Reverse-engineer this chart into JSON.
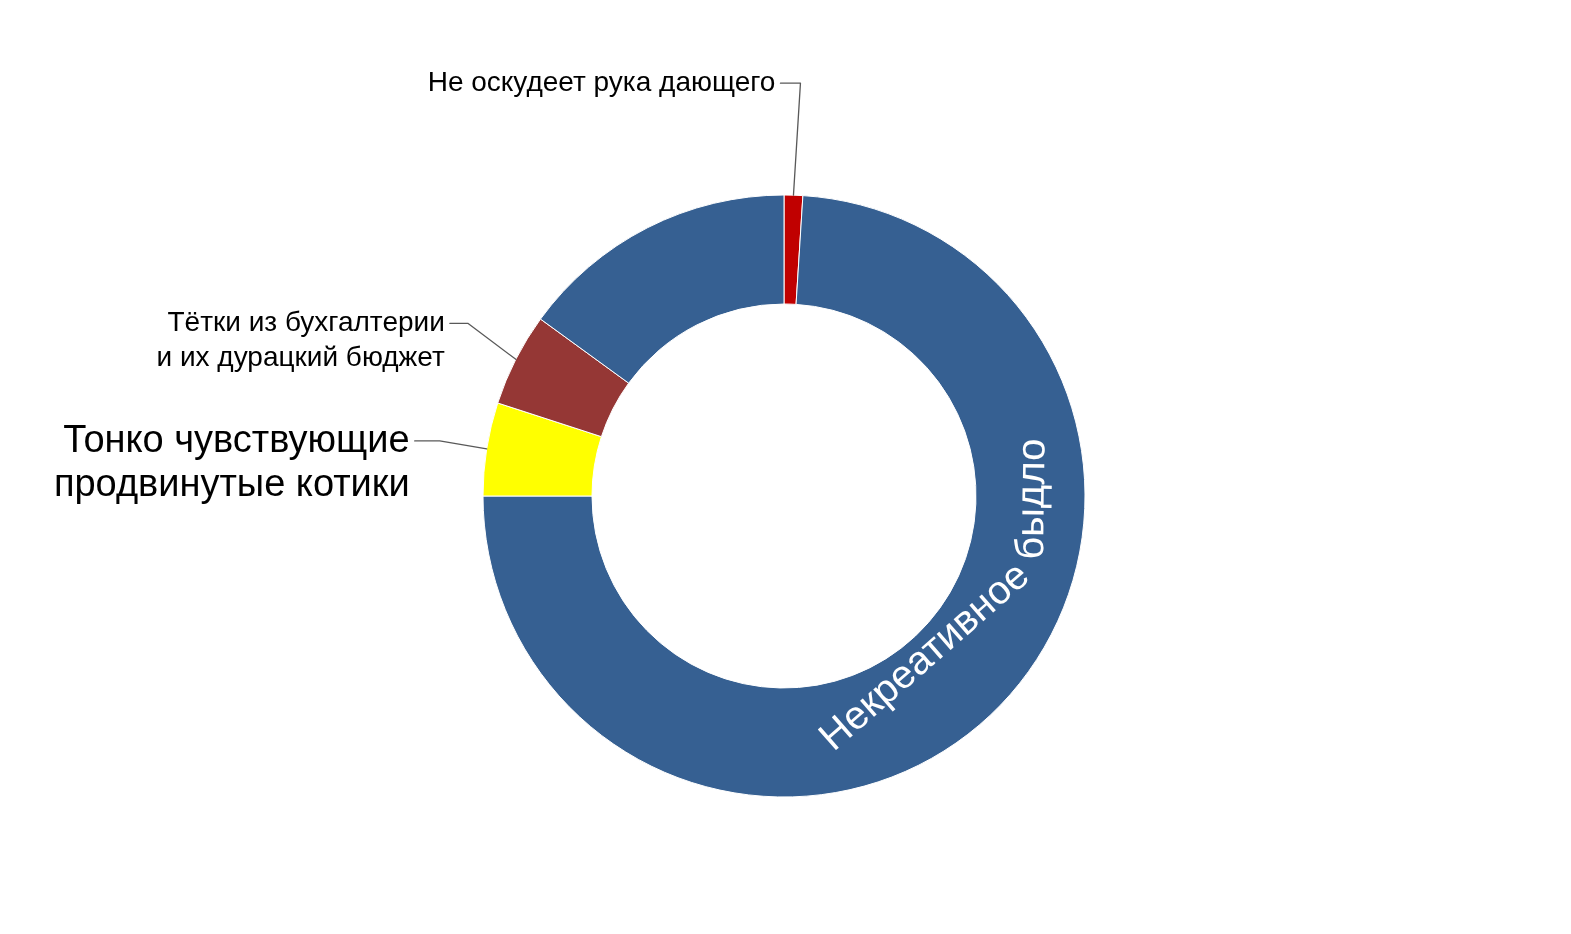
{
  "chart_data": {
    "type": "donut",
    "categories": [
      "Не оскудеет рука дающего",
      "Некреативное быдло",
      "Тонко чувствующие\nпродвинутые котики",
      "Тётки из бухгалтерии\nи их дурацкий бюджет",
      null
    ],
    "values": [
      1,
      74,
      5,
      5,
      15
    ],
    "colors": [
      "#c00000",
      "#366092",
      "#ffff00",
      "#953735",
      "#366092"
    ]
  }
}
